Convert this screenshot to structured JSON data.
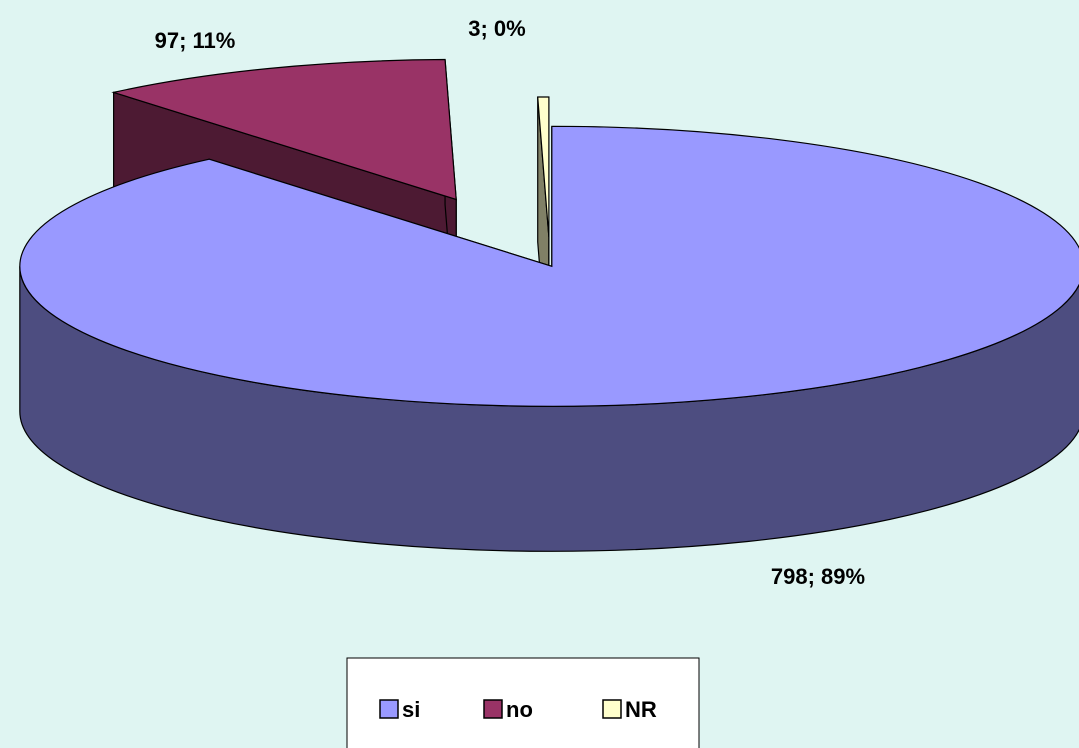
{
  "chart_data": {
    "type": "pie",
    "three_d": true,
    "categories": [
      "si",
      "no",
      "NR"
    ],
    "values": [
      798,
      97,
      3
    ],
    "value_labels": [
      "798; 89%",
      "97; 11%",
      "3; 0%"
    ],
    "colors": [
      "#9999ff",
      "#993366",
      "#ffffcc"
    ],
    "legend": "bottom"
  }
}
